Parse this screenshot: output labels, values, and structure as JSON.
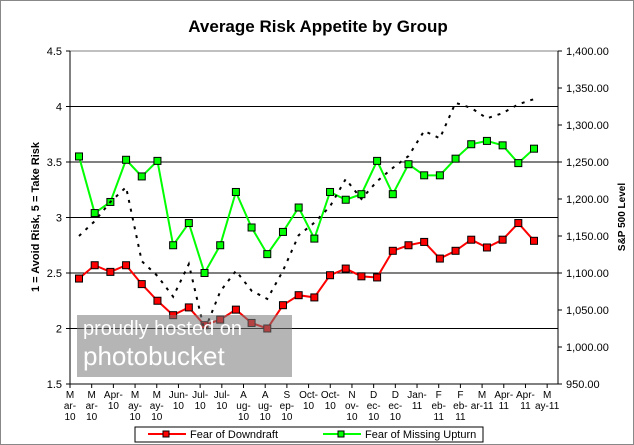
{
  "chart_data": {
    "type": "line",
    "title": "Average Risk Appetite by Group",
    "ylabel": "1 = Avoid Risk, 5 = Take Risk",
    "y2label": "S&P 500 Level",
    "ylim": [
      1.5,
      4.5
    ],
    "y2lim": [
      950,
      1400
    ],
    "yticks": [
      "1.5",
      "2",
      "2.5",
      "3",
      "3.5",
      "4",
      "4.5"
    ],
    "y2ticks": [
      "950.00",
      "1,000.00",
      "1,050.00",
      "1,100.00",
      "1,150.00",
      "1,200.00",
      "1,250.00",
      "1,300.00",
      "1,350.00",
      "1,400.00"
    ],
    "xticks": [
      [
        "M",
        "ar-",
        "10"
      ],
      [
        "M",
        "ar-",
        "10"
      ],
      [
        "Apr-",
        "10"
      ],
      [
        "M",
        "ay-",
        "10"
      ],
      [
        "M",
        "ay-",
        "10"
      ],
      [
        "Jun-",
        "10"
      ],
      [
        "Jul-",
        "10"
      ],
      [
        "Jul-",
        "10"
      ],
      [
        "A",
        "ug-",
        "10"
      ],
      [
        "A",
        "ug-",
        "10"
      ],
      [
        "S",
        "ep-",
        "10"
      ],
      [
        "Oct-",
        "10"
      ],
      [
        "Oct-",
        "10"
      ],
      [
        "N",
        "ov-",
        "10"
      ],
      [
        "D",
        "ec-",
        "10"
      ],
      [
        "D",
        "ec-",
        "10"
      ],
      [
        "Jan-",
        "11"
      ],
      [
        "F",
        "eb-",
        "11"
      ],
      [
        "F",
        "eb-",
        "11"
      ],
      [
        "M",
        "ar-11"
      ],
      [
        "Apr-",
        "11"
      ],
      [
        "Apr-",
        "11"
      ],
      [
        "M",
        "ay-11"
      ]
    ],
    "grid": true,
    "legend": "bottom",
    "series": [
      {
        "name": "Fear of Downdraft",
        "color": "#ff0000",
        "values": [
          2.45,
          2.57,
          2.51,
          2.57,
          2.4,
          2.25,
          2.12,
          2.19,
          2.03,
          2.08,
          2.17,
          2.05,
          2.0,
          2.21,
          2.3,
          2.28,
          2.48,
          2.54,
          2.47,
          2.46,
          2.7,
          2.75,
          2.78,
          2.63,
          2.7,
          2.8,
          2.73,
          2.8,
          2.95,
          2.79
        ]
      },
      {
        "name": "Fear of Missing Upturn",
        "color": "#00ff00",
        "values": [
          3.55,
          3.04,
          3.14,
          3.52,
          3.37,
          3.51,
          2.75,
          2.95,
          2.5,
          2.75,
          3.23,
          2.91,
          2.67,
          2.87,
          3.09,
          2.81,
          3.23,
          3.16,
          3.21,
          3.51,
          3.21,
          3.48,
          3.38,
          3.38,
          3.53,
          3.66,
          3.69,
          3.65,
          3.49,
          3.62
        ]
      },
      {
        "axis": "right",
        "color": "#000000",
        "style": "dotted",
        "values": [
          1150,
          1170,
          1196,
          1216,
          1116,
          1096,
          1068,
          1112,
          1022,
          1075,
          1103,
          1076,
          1065,
          1103,
          1151,
          1168,
          1190,
          1227,
          1200,
          1224,
          1242,
          1258,
          1292,
          1282,
          1330,
          1323,
          1309,
          1316,
          1328,
          1335
        ]
      }
    ]
  },
  "watermark": {
    "line1": "proudly hosted on",
    "line2": "photobucket"
  }
}
